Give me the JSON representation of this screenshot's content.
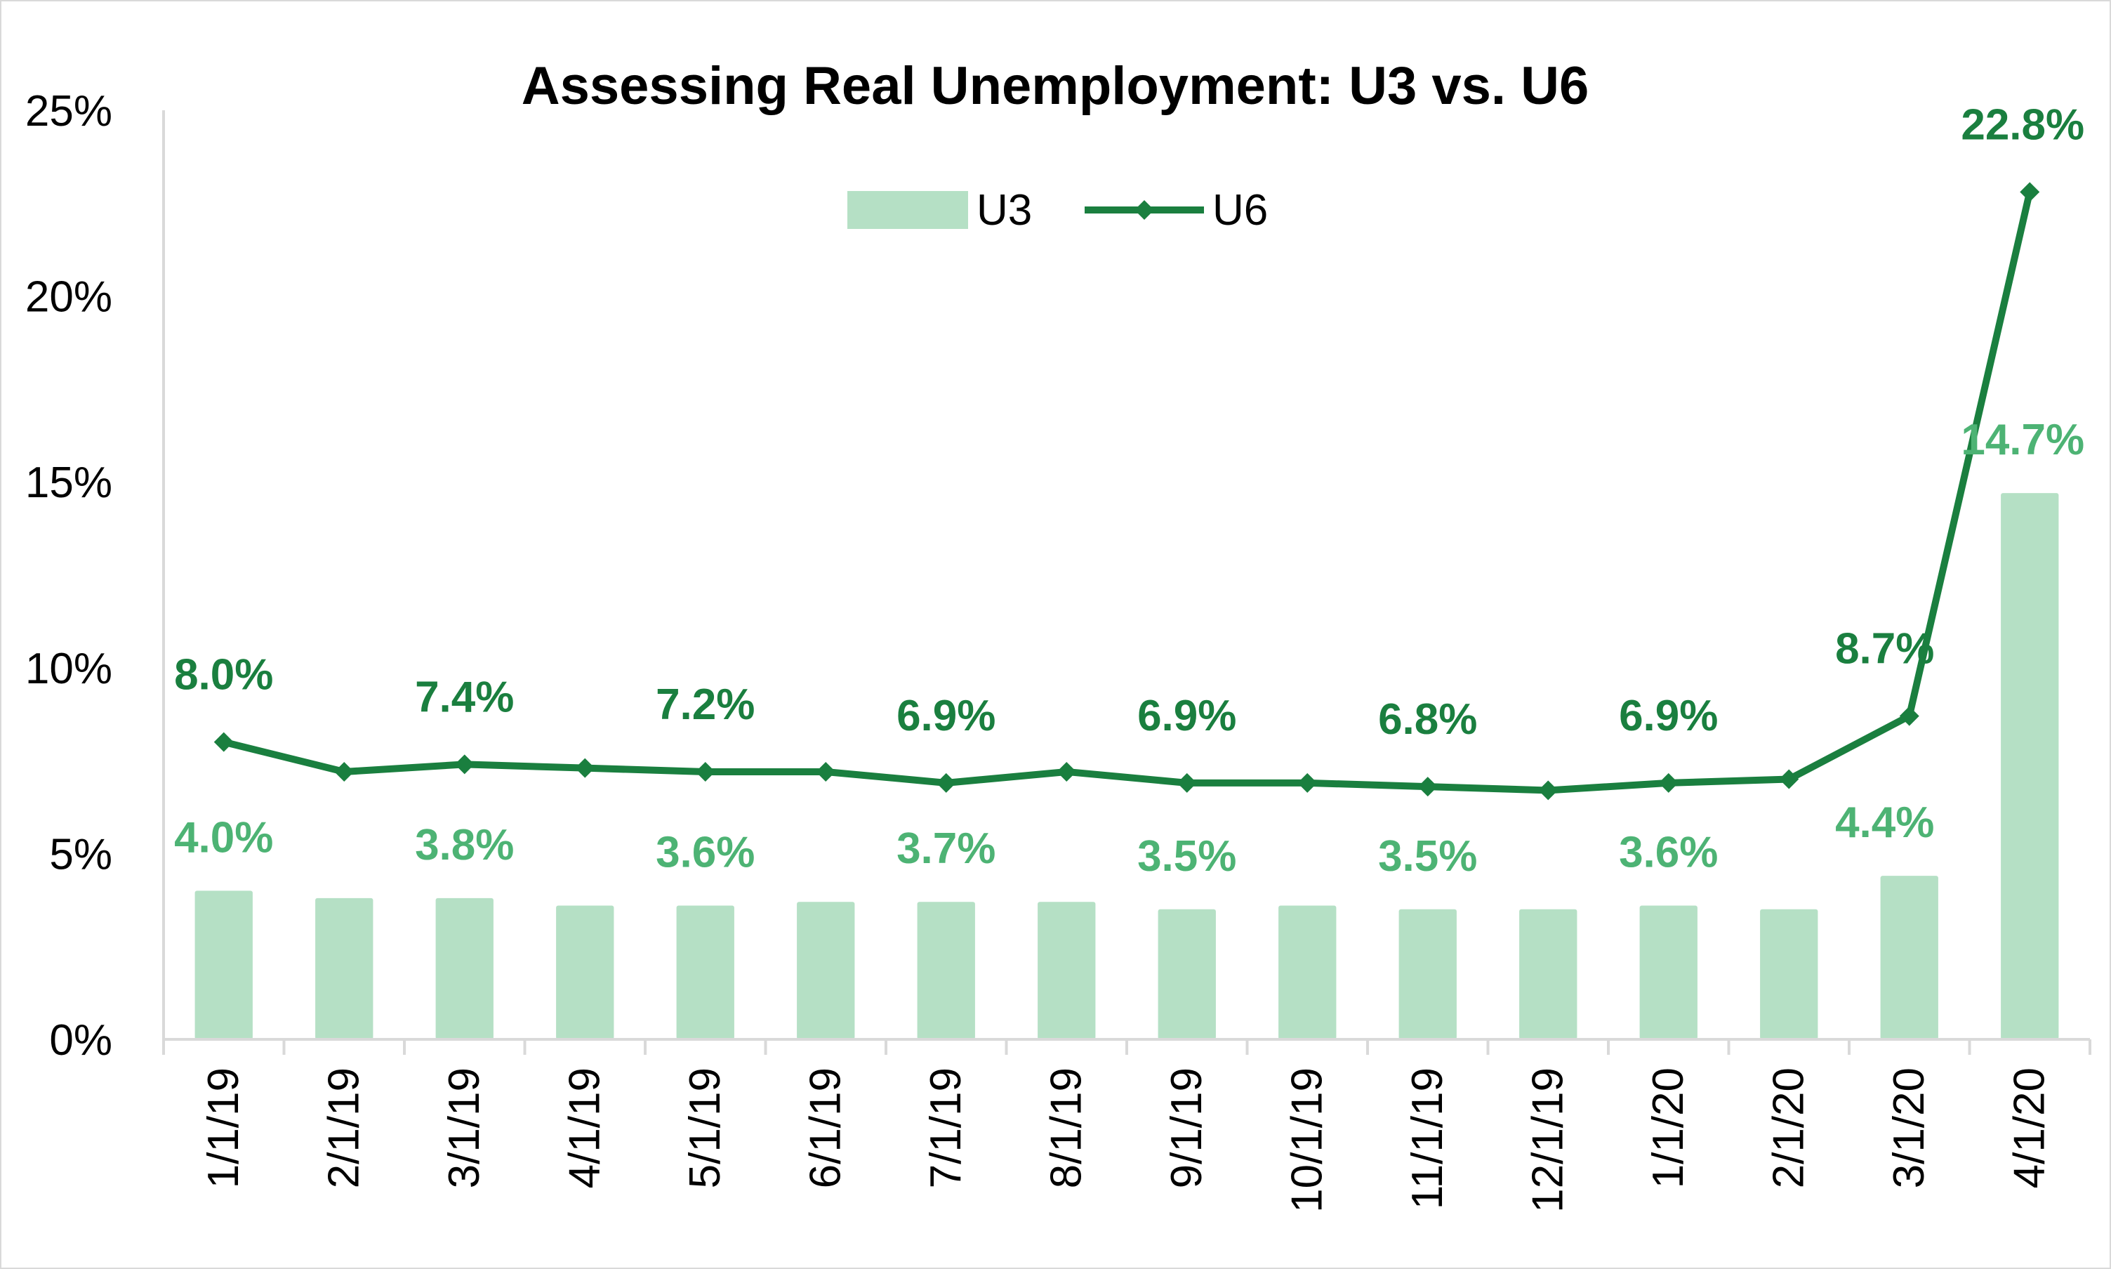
{
  "chart_data": {
    "type": "bar",
    "title": "Assessing Real Unemployment: U3 vs. U6",
    "categories": [
      "1/1/19",
      "2/1/19",
      "3/1/19",
      "4/1/19",
      "5/1/19",
      "6/1/19",
      "7/1/19",
      "8/1/19",
      "9/1/19",
      "10/1/19",
      "11/1/19",
      "12/1/19",
      "1/1/20",
      "2/1/20",
      "3/1/20",
      "4/1/20"
    ],
    "y_axis": {
      "min": 0,
      "max": 25,
      "ticks": [
        0,
        5,
        10,
        15,
        20,
        25
      ],
      "tick_labels": [
        "0%",
        "5%",
        "10%",
        "15%",
        "20%",
        "25%"
      ]
    },
    "grid": false,
    "legend_position": "top-center",
    "series": [
      {
        "name": "U3",
        "type": "bar",
        "color": "#b5e0c5",
        "label_color": "#4db374",
        "values": [
          4.0,
          3.8,
          3.8,
          3.6,
          3.6,
          3.7,
          3.7,
          3.7,
          3.5,
          3.6,
          3.5,
          3.5,
          3.6,
          3.5,
          4.4,
          14.7
        ],
        "data_labels": [
          "4.0%",
          "",
          "3.8%",
          "",
          "3.6%",
          "",
          "3.7%",
          "",
          "3.5%",
          "",
          "3.5%",
          "",
          "3.6%",
          "",
          "4.4%",
          "14.7%"
        ]
      },
      {
        "name": "U6",
        "type": "line",
        "color": "#1a7f3f",
        "marker": "diamond",
        "values": [
          8.0,
          7.2,
          7.4,
          7.3,
          7.2,
          7.2,
          6.9,
          7.2,
          6.9,
          6.9,
          6.8,
          6.7,
          6.9,
          7.0,
          8.7,
          22.8
        ],
        "data_labels": [
          "8.0%",
          "",
          "7.4%",
          "",
          "7.2%",
          "",
          "6.9%",
          "",
          "6.9%",
          "",
          "6.8%",
          "",
          "6.9%",
          "",
          "8.7%",
          "22.8%"
        ]
      }
    ]
  }
}
